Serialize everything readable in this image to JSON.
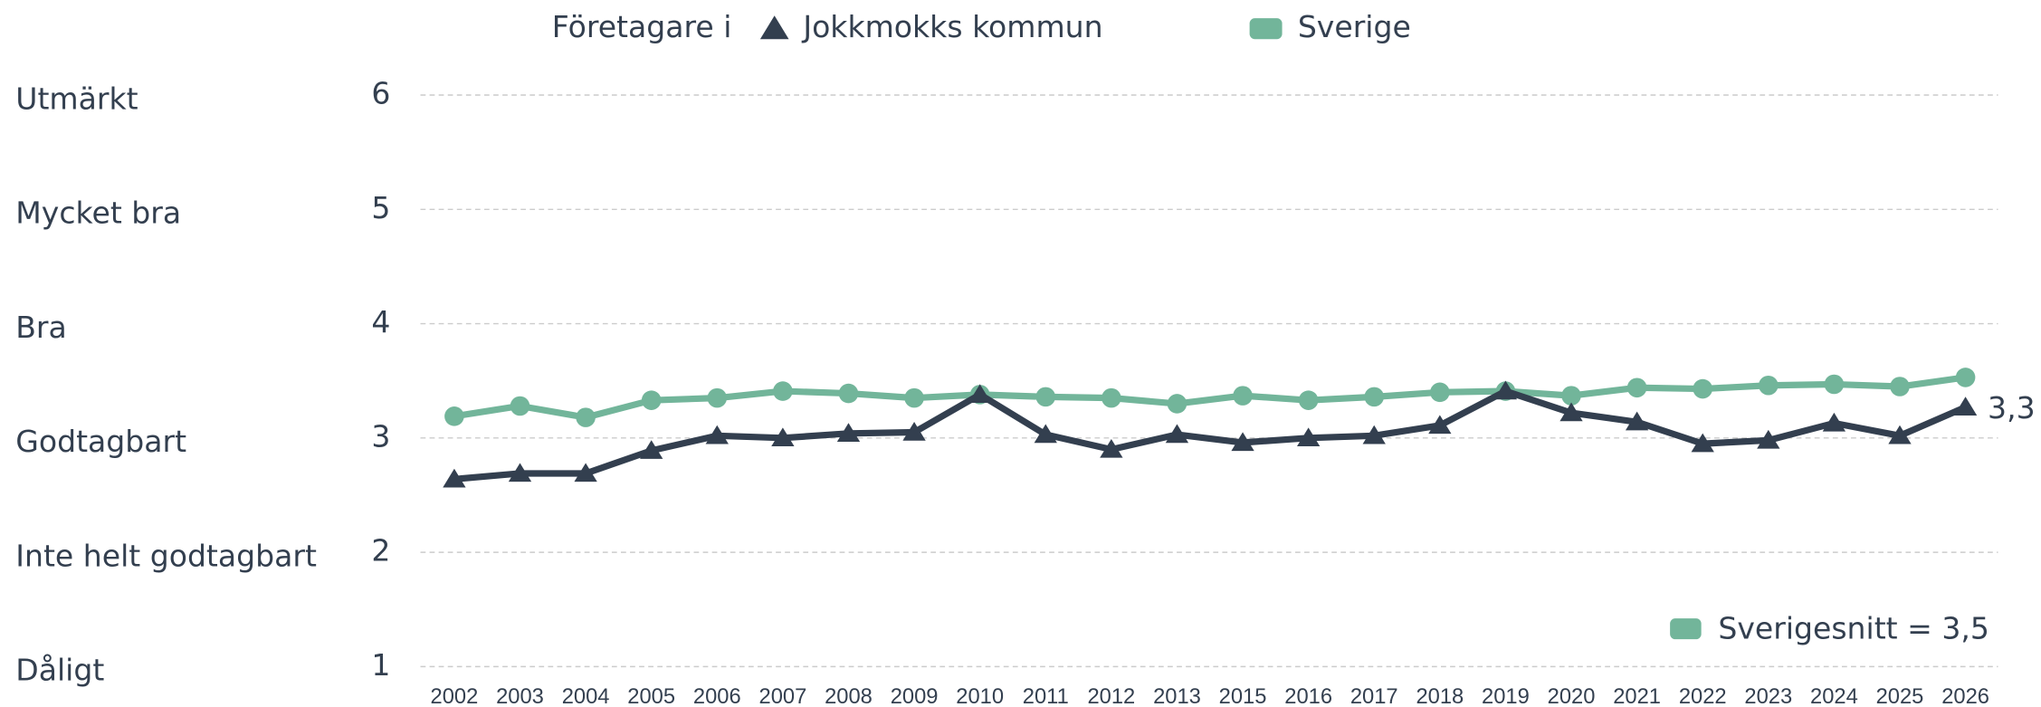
{
  "chart_data": {
    "type": "line",
    "legend_title": "Företagare i",
    "categories": [
      "2002",
      "2003",
      "2004",
      "2005",
      "2006",
      "2007",
      "2008",
      "2009",
      "2010",
      "2011",
      "2012",
      "2013",
      "2015",
      "2016",
      "2017",
      "2018",
      "2019",
      "2020",
      "2021",
      "2022",
      "2023",
      "2024",
      "2025",
      "2026"
    ],
    "series": [
      {
        "name": "Jokkmokks kommun",
        "color": "#333f4f",
        "marker": "triangle",
        "values": [
          2.64,
          2.69,
          2.69,
          2.89,
          3.02,
          3.0,
          3.04,
          3.05,
          3.38,
          3.03,
          2.9,
          3.03,
          2.96,
          3.0,
          3.02,
          3.11,
          3.41,
          3.22,
          3.14,
          2.95,
          2.98,
          3.13,
          3.02,
          3.27
        ],
        "value_labels": [
          null,
          null,
          null,
          null,
          null,
          null,
          null,
          null,
          null,
          null,
          null,
          null,
          null,
          null,
          null,
          null,
          null,
          null,
          null,
          null,
          null,
          null,
          null,
          "3,3"
        ]
      },
      {
        "name": "Sverige",
        "color": "#72b59a",
        "marker": "circle",
        "values": [
          3.19,
          3.28,
          3.18,
          3.33,
          3.35,
          3.41,
          3.39,
          3.35,
          3.38,
          3.36,
          3.35,
          3.3,
          3.37,
          3.33,
          3.36,
          3.4,
          3.41,
          3.37,
          3.44,
          3.43,
          3.46,
          3.47,
          3.45,
          3.53
        ]
      }
    ],
    "ylim": [
      1,
      6
    ],
    "yticks": [
      1,
      2,
      3,
      4,
      5,
      6
    ],
    "ytick_names": [
      "Dåligt",
      "Inte helt godtagbart",
      "Godtagbart",
      "Bra",
      "Mycket bra",
      "Utmärkt"
    ],
    "annotation": "Sverigesnitt = 3,5",
    "grid": true
  }
}
